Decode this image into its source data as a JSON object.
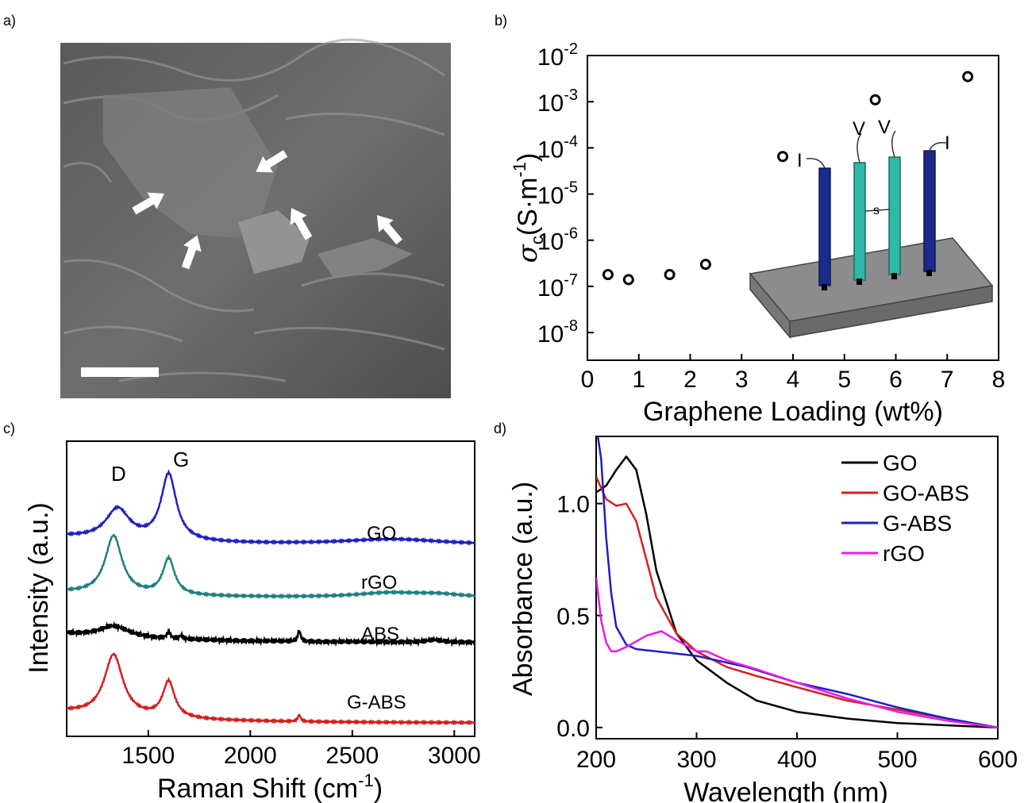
{
  "panels": {
    "a": {
      "label": "a)"
    },
    "b": {
      "label": "b)",
      "inset_labels": [
        "I",
        "V",
        "V",
        "I"
      ],
      "inset_spacing_label": "s"
    },
    "c": {
      "label": "c)",
      "peak_labels": [
        "D",
        "G"
      ]
    },
    "d": {
      "label": "d)"
    }
  },
  "chart_data": [
    {
      "panel": "b",
      "type": "scatter",
      "xlabel": "Graphene Loading (wt%)",
      "ylabel_symbol": "σ",
      "ylabel_subscript": "c",
      "ylabel_units": "(S·m",
      "ylabel_exponent": "-1",
      "ylabel_close": ")",
      "xlim": [
        0,
        8
      ],
      "xticks": [
        0,
        1,
        2,
        3,
        4,
        5,
        6,
        7,
        8
      ],
      "ylog": true,
      "ylim_exp": [
        -8.6,
        -2
      ],
      "ytick_exps": [
        -8,
        -7,
        -6,
        -5,
        -4,
        -3,
        -2
      ],
      "ytick_base": "10",
      "marker": "open circle",
      "points": [
        {
          "x": 0.4,
          "y": 1.8e-07
        },
        {
          "x": 0.8,
          "y": 1.4e-07
        },
        {
          "x": 1.6,
          "y": 1.8e-07
        },
        {
          "x": 2.3,
          "y": 3e-07
        },
        {
          "x": 3.8,
          "y": 6.5e-05
        },
        {
          "x": 5.6,
          "y": 0.0011
        },
        {
          "x": 7.4,
          "y": 0.0035
        }
      ]
    },
    {
      "panel": "c",
      "type": "line",
      "xlabel": "Raman Shift (cm",
      "xlabel_exponent": "-1",
      "xlabel_close": ")",
      "ylabel": "Intensity (a.u.)",
      "xlim": [
        1100,
        3100
      ],
      "xticks": [
        1500,
        2000,
        2500,
        3000
      ],
      "yticks": "none",
      "series": [
        {
          "name": "GO",
          "color": "#1f1fbf",
          "offset": 3.3,
          "peaks": [
            [
              1350,
              0.55,
              70
            ],
            [
              1600,
              1.2,
              45
            ],
            [
              2700,
              0.1,
              300
            ]
          ],
          "base": 0.15
        },
        {
          "name": "rGO",
          "color": "#1f7f7f",
          "offset": 2.35,
          "peaks": [
            [
              1330,
              1.05,
              50
            ],
            [
              1600,
              0.65,
              35
            ],
            [
              2680,
              0.08,
              200
            ],
            [
              2920,
              0.05,
              150
            ]
          ],
          "base": 0.1
        },
        {
          "name": "ABS",
          "color": "#000000",
          "offset": 1.55,
          "peaks": [
            [
              1330,
              0.2,
              90
            ],
            [
              1600,
              0.12,
              10
            ],
            [
              1660,
              0.06,
              10
            ],
            [
              2240,
              0.2,
              8
            ],
            [
              2900,
              0.04,
              40
            ]
          ],
          "base": 0.15
        },
        {
          "name": "G-ABS",
          "color": "#d41f1f",
          "offset": 0.1,
          "peaks": [
            [
              1330,
              1.1,
              55
            ],
            [
              1600,
              0.65,
              35
            ],
            [
              2240,
              0.12,
              8
            ]
          ],
          "base": 0.2
        }
      ]
    },
    {
      "panel": "d",
      "type": "line",
      "xlabel": "Wavelength (nm)",
      "ylabel": "Absorbance (a.u.)",
      "xlim": [
        200,
        600
      ],
      "xticks": [
        200,
        300,
        400,
        500,
        600
      ],
      "ylim": [
        -0.05,
        1.3
      ],
      "yticks": [
        "0.0",
        "0.5",
        "1.0"
      ],
      "legend_position": "top-right",
      "series": [
        {
          "name": "GO",
          "color": "#000000",
          "points": [
            [
              200,
              1.05
            ],
            [
              210,
              1.08
            ],
            [
              220,
              1.15
            ],
            [
              230,
              1.21
            ],
            [
              240,
              1.15
            ],
            [
              250,
              0.95
            ],
            [
              260,
              0.7
            ],
            [
              280,
              0.42
            ],
            [
              300,
              0.3
            ],
            [
              330,
              0.2
            ],
            [
              360,
              0.12
            ],
            [
              400,
              0.07
            ],
            [
              450,
              0.04
            ],
            [
              500,
              0.02
            ],
            [
              550,
              0.01
            ],
            [
              600,
              0.0
            ]
          ]
        },
        {
          "name": "GO-ABS",
          "color": "#d41f1f",
          "points": [
            [
              200,
              1.12
            ],
            [
              210,
              1.02
            ],
            [
              220,
              0.99
            ],
            [
              230,
              1.0
            ],
            [
              240,
              0.92
            ],
            [
              250,
              0.75
            ],
            [
              260,
              0.58
            ],
            [
              280,
              0.42
            ],
            [
              300,
              0.34
            ],
            [
              330,
              0.27
            ],
            [
              360,
              0.23
            ],
            [
              400,
              0.18
            ],
            [
              450,
              0.12
            ],
            [
              500,
              0.08
            ],
            [
              550,
              0.04
            ],
            [
              600,
              0.0
            ]
          ]
        },
        {
          "name": "G-ABS",
          "color": "#1f1fbf",
          "points": [
            [
              200,
              1.35
            ],
            [
              205,
              1.2
            ],
            [
              210,
              0.85
            ],
            [
              215,
              0.6
            ],
            [
              220,
              0.45
            ],
            [
              230,
              0.37
            ],
            [
              240,
              0.35
            ],
            [
              260,
              0.34
            ],
            [
              280,
              0.33
            ],
            [
              300,
              0.32
            ],
            [
              350,
              0.27
            ],
            [
              400,
              0.2
            ],
            [
              450,
              0.15
            ],
            [
              500,
              0.09
            ],
            [
              550,
              0.04
            ],
            [
              600,
              0.0
            ]
          ]
        },
        {
          "name": "rGO",
          "color": "#e61ee6",
          "points": [
            [
              200,
              0.67
            ],
            [
              205,
              0.48
            ],
            [
              210,
              0.38
            ],
            [
              215,
              0.34
            ],
            [
              220,
              0.34
            ],
            [
              230,
              0.36
            ],
            [
              250,
              0.41
            ],
            [
              265,
              0.43
            ],
            [
              280,
              0.39
            ],
            [
              300,
              0.34
            ],
            [
              310,
              0.34
            ],
            [
              330,
              0.3
            ],
            [
              360,
              0.26
            ],
            [
              400,
              0.2
            ],
            [
              450,
              0.13
            ],
            [
              500,
              0.07
            ],
            [
              550,
              0.03
            ],
            [
              600,
              0.0
            ]
          ]
        }
      ]
    }
  ]
}
